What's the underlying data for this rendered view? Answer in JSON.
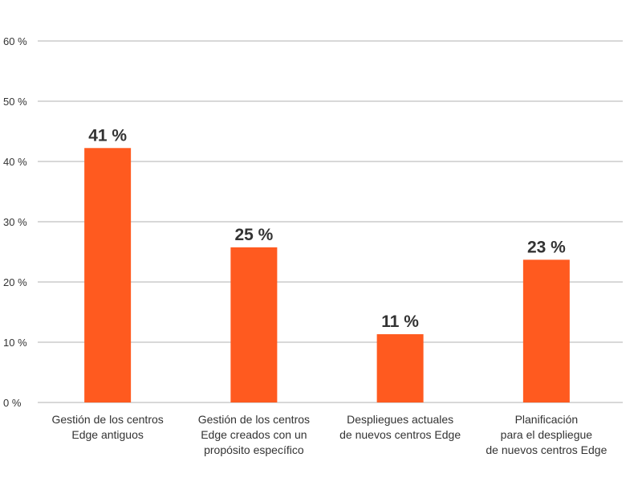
{
  "chart_data": {
    "type": "bar",
    "title": "",
    "xlabel": "",
    "ylabel": "",
    "ylim": [
      0,
      60
    ],
    "yticks": [
      0,
      10,
      20,
      30,
      40,
      50,
      60
    ],
    "ytick_labels": [
      "0 %",
      "10 %",
      "20 %",
      "30 %",
      "40 %",
      "50 %",
      "60 %"
    ],
    "grid": true,
    "categories": [
      [
        "Gestión de los centros",
        "Edge antiguos"
      ],
      [
        "Gestión de los centros",
        "Edge creados con un",
        "propósito específico"
      ],
      [
        "Despliegues actuales",
        "de nuevos centros Edge"
      ],
      [
        "Planificación",
        "para el despliegue",
        "de nuevos centros Edge"
      ]
    ],
    "values": [
      41,
      25,
      11,
      23
    ],
    "data_labels": [
      "41 %",
      "25 %",
      "11 %",
      "23 %"
    ],
    "colors": {
      "bar": "#ff5a1f",
      "grid": "#cccccc",
      "text": "#333333"
    }
  }
}
